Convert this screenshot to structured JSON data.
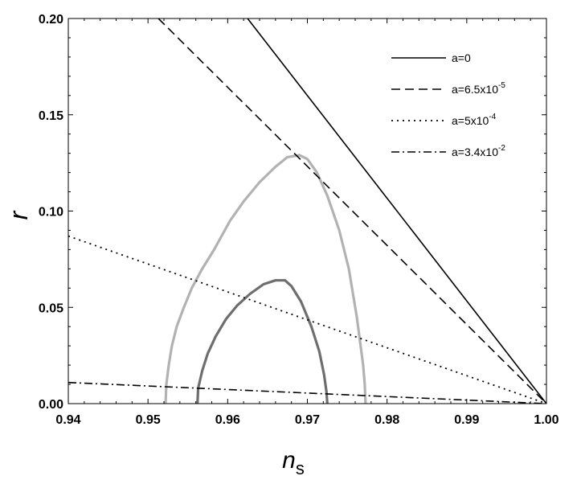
{
  "chart_data": {
    "type": "line",
    "title": "",
    "xlabel": "n",
    "xlabel_subscript": "s",
    "ylabel": "r",
    "xlim": [
      0.94,
      1.0
    ],
    "ylim": [
      0.0,
      0.2
    ],
    "x_ticks": [
      "0.94",
      "0.95",
      "0.96",
      "0.97",
      "0.98",
      "0.99",
      "1.00"
    ],
    "y_ticks": [
      "0.00",
      "0.05",
      "0.10",
      "0.15",
      "0.20"
    ],
    "grid": false,
    "legend_position": "top-right",
    "series": [
      {
        "name": "a=0",
        "legend_base": "a=0",
        "legend_exp": "",
        "style": "solid",
        "color": "#000000",
        "x": [
          0.9625,
          1.0
        ],
        "y": [
          0.2,
          0.0
        ]
      },
      {
        "name": "a=6.5x10-5",
        "legend_base": "a=6.5x10",
        "legend_exp": "-5",
        "style": "dashed",
        "color": "#000000",
        "x": [
          0.9513,
          1.0
        ],
        "y": [
          0.2,
          0.0
        ]
      },
      {
        "name": "a=5x10-4",
        "legend_base": "a=5x10",
        "legend_exp": "-4",
        "style": "dotted",
        "color": "#000000",
        "x": [
          0.94,
          1.0
        ],
        "y": [
          0.087,
          0.0
        ]
      },
      {
        "name": "a=3.4x10-2",
        "legend_base": "a=3.4x10",
        "legend_exp": "-2",
        "style": "dashdot",
        "color": "#000000",
        "x": [
          0.94,
          1.0
        ],
        "y": [
          0.011,
          0.0
        ]
      }
    ],
    "contours": [
      {
        "color": "#b2b2b2",
        "x": [
          0.9522,
          0.9523,
          0.9526,
          0.953,
          0.9536,
          0.9545,
          0.9555,
          0.9568,
          0.9583,
          0.9603,
          0.962,
          0.964,
          0.966,
          0.9675,
          0.969,
          0.97,
          0.9712,
          0.9725,
          0.974,
          0.9752,
          0.9762,
          0.977,
          0.9772,
          0.9773
        ],
        "y": [
          0.0,
          0.01,
          0.02,
          0.03,
          0.04,
          0.05,
          0.06,
          0.07,
          0.08,
          0.095,
          0.105,
          0.115,
          0.123,
          0.128,
          0.129,
          0.127,
          0.12,
          0.108,
          0.09,
          0.07,
          0.045,
          0.02,
          0.01,
          0.0
        ]
      },
      {
        "color": "#6e6e6e",
        "x": [
          0.9562,
          0.9563,
          0.9568,
          0.9575,
          0.9585,
          0.9598,
          0.9612,
          0.9628,
          0.9645,
          0.966,
          0.9672,
          0.968,
          0.9692,
          0.9705,
          0.9715,
          0.9721,
          0.9724,
          0.9725
        ],
        "y": [
          0.0,
          0.008,
          0.017,
          0.026,
          0.035,
          0.044,
          0.051,
          0.057,
          0.062,
          0.064,
          0.064,
          0.061,
          0.053,
          0.04,
          0.027,
          0.015,
          0.006,
          0.0
        ]
      }
    ]
  }
}
